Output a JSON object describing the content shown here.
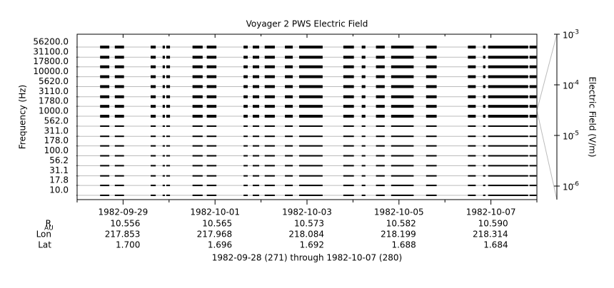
{
  "chart_data": {
    "type": "spectrum-coverage",
    "title": "Voyager 2 PWS Electric Field",
    "y_label": "Frequency (Hz)",
    "y2_label": "Electric Field (V/m)",
    "caption": "1982-09-28 (271) through 1982-10-07 (280)",
    "xlim": [
      271,
      281
    ],
    "xticks": [
      {
        "value": 272,
        "label": "1982-09-29"
      },
      {
        "value": 274,
        "label": "1982-10-01"
      },
      {
        "value": 276,
        "label": "1982-10-03"
      },
      {
        "value": 278,
        "label": "1982-10-05"
      },
      {
        "value": 280,
        "label": "1982-10-07"
      }
    ],
    "xminor_ticks": [
      271,
      273,
      275,
      277,
      279,
      281
    ],
    "log_y": true,
    "ylim": [
      5.83,
      88700
    ],
    "yticks": [
      {
        "value": 10,
        "label": "10.0"
      },
      {
        "value": 17.8,
        "label": "17.8"
      },
      {
        "value": 31.1,
        "label": "31.1"
      },
      {
        "value": 56.2,
        "label": "56.2"
      },
      {
        "value": 100,
        "label": "100.0"
      },
      {
        "value": 178,
        "label": "178.0"
      },
      {
        "value": 311,
        "label": "311.0"
      },
      {
        "value": 562,
        "label": "562.0"
      },
      {
        "value": 1000,
        "label": "1000.0"
      },
      {
        "value": 1780,
        "label": "1780.0"
      },
      {
        "value": 3110,
        "label": "3110.0"
      },
      {
        "value": 5620,
        "label": "5620.0"
      },
      {
        "value": 10000,
        "label": "10000.0"
      },
      {
        "value": 17800,
        "label": "17800.0"
      },
      {
        "value": 31100,
        "label": "31100.0"
      },
      {
        "value": 56200,
        "label": "56200.0"
      }
    ],
    "y2lim": [
      5.4e-07,
      0.001
    ],
    "y2ticks": [
      {
        "value": 0.001,
        "label": "10",
        "exponent": "-3"
      },
      {
        "value": 0.0001,
        "label": "10",
        "exponent": "-4"
      },
      {
        "value": 1e-05,
        "label": "10",
        "exponent": "-5"
      },
      {
        "value": 1e-06,
        "label": "10",
        "exponent": "-6"
      }
    ],
    "color": "#000000",
    "grid_color": "#bbbbbb",
    "segments": [
      [
        271.5,
        271.7
      ],
      [
        271.82,
        272.02
      ],
      [
        272.6,
        272.71
      ],
      [
        272.86,
        272.91
      ],
      [
        272.94,
        273.02
      ],
      [
        273.51,
        273.73
      ],
      [
        273.82,
        274.03
      ],
      [
        274.62,
        274.71
      ],
      [
        274.82,
        274.96
      ],
      [
        275.08,
        275.3
      ],
      [
        275.52,
        275.69
      ],
      [
        275.83,
        276.34
      ],
      [
        276.79,
        277.02
      ],
      [
        277.19,
        277.27
      ],
      [
        277.5,
        277.69
      ],
      [
        277.83,
        278.32
      ],
      [
        278.59,
        278.82
      ],
      [
        279.5,
        279.67
      ],
      [
        279.83,
        279.88
      ],
      [
        279.94,
        280.81
      ],
      [
        280.84,
        280.99
      ]
    ],
    "ephemeris": {
      "rows": [
        {
          "label": "R",
          "subscript": "AU",
          "values": [
            "10.556",
            "10.565",
            "10.573",
            "10.582",
            "10.590"
          ]
        },
        {
          "label": "Lon",
          "values": [
            "217.853",
            "217.968",
            "218.084",
            "218.199",
            "218.314"
          ]
        },
        {
          "label": "Lat",
          "values": [
            "1.700",
            "1.696",
            "1.692",
            "1.688",
            "1.684"
          ]
        }
      ]
    }
  }
}
